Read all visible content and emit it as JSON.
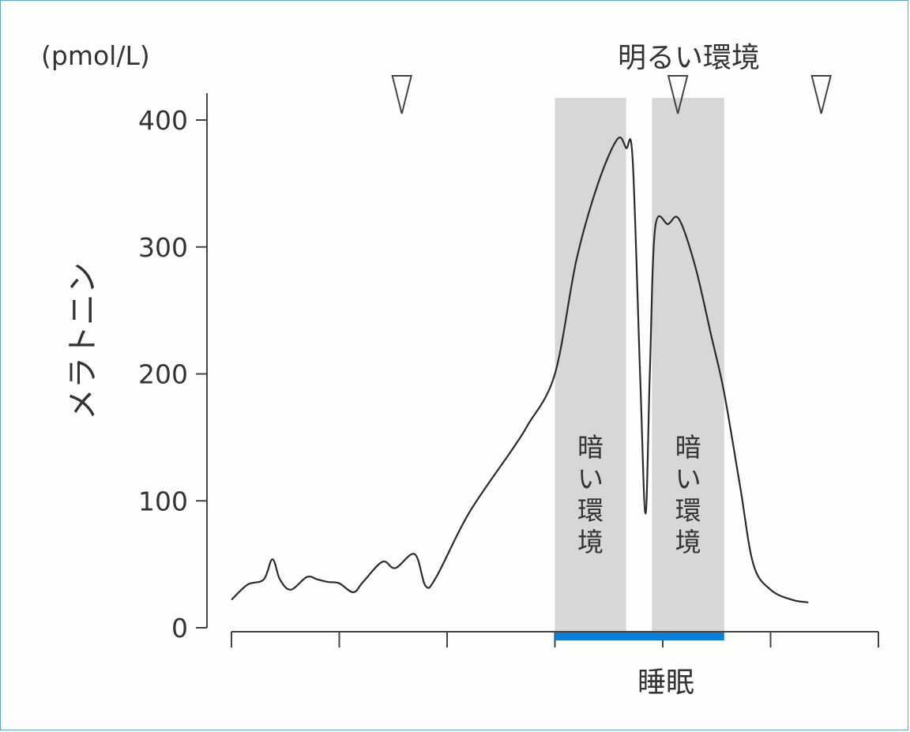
{
  "chart_data": {
    "type": "line",
    "unit_label": "(pmol/L)",
    "ylabel": "メラトニン",
    "ylim": [
      0,
      400
    ],
    "yticks": [
      0,
      100,
      200,
      300,
      400
    ],
    "ytick_labels": [
      "0",
      "100",
      "200",
      "300",
      "400"
    ],
    "x_domain": [
      0,
      6
    ],
    "xticks": [
      0,
      1,
      2,
      3,
      4,
      5,
      6
    ],
    "top_label": "明るい環境",
    "dark_label": "暗い環境",
    "sleep_label": "睡眠",
    "dark_periods": [
      [
        3.0,
        3.66
      ],
      [
        3.9,
        4.57
      ]
    ],
    "sleep_period": [
      3.0,
      4.57
    ],
    "markers_x": [
      1.58,
      4.14,
      5.47
    ],
    "series": [
      {
        "x": [
          0.0,
          0.15,
          0.3,
          0.38,
          0.45,
          0.55,
          0.7,
          0.8,
          0.9,
          1.0,
          1.13,
          1.22,
          1.4,
          1.52,
          1.7,
          1.8,
          1.9,
          2.2,
          2.6,
          2.75,
          3.0,
          3.2,
          3.4,
          3.58,
          3.66,
          3.72,
          3.79,
          3.84,
          3.88,
          3.93,
          4.05,
          4.15,
          4.3,
          4.45,
          4.57,
          4.72,
          4.84,
          5.0,
          5.2,
          5.35
        ],
        "y": [
          22,
          34,
          38,
          54,
          38,
          30,
          40,
          38,
          36,
          35,
          28,
          36,
          52,
          47,
          58,
          33,
          40,
          90,
          140,
          160,
          200,
          290,
          350,
          385,
          378,
          370,
          200,
          90,
          200,
          315,
          318,
          322,
          285,
          230,
          185,
          110,
          50,
          30,
          22,
          20
        ]
      }
    ]
  },
  "colors": {
    "line": "#2b2b2b",
    "dark_band": "#d7d7d7",
    "sleep_bar": "#0a7ed8",
    "axis": "#444444",
    "text": "#333333",
    "frame": "#5aa9c9"
  }
}
